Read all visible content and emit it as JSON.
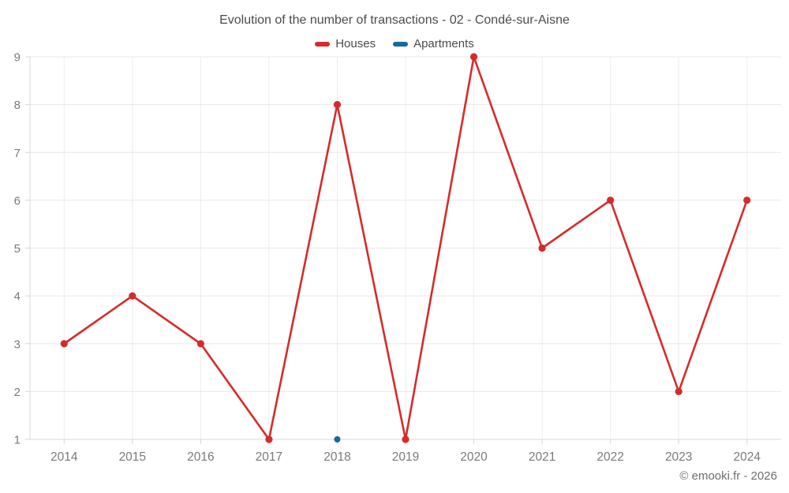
{
  "chart_data": {
    "type": "line",
    "title": "Evolution of the number of transactions - 02 - Condé-sur-Aisne",
    "categories": [
      "2014",
      "2015",
      "2016",
      "2017",
      "2018",
      "2019",
      "2020",
      "2021",
      "2022",
      "2023",
      "2024"
    ],
    "series": [
      {
        "name": "Houses",
        "color": "#d62b2b",
        "values": [
          3,
          4,
          3,
          1,
          8,
          1,
          9,
          5,
          6,
          2,
          6
        ]
      },
      {
        "name": "Apartments",
        "color": "#17699e",
        "values": [
          null,
          null,
          null,
          null,
          1,
          null,
          null,
          null,
          null,
          null,
          null
        ]
      }
    ],
    "ylim": [
      1,
      9
    ],
    "yticks": [
      1,
      2,
      3,
      4,
      5,
      6,
      7,
      8,
      9
    ],
    "grid": true,
    "legend_position": "top",
    "xlabel": "",
    "ylabel": ""
  },
  "colors": {
    "h_gridline": "#e8e8e8",
    "v_gridline": "#ededed",
    "axis": "#d8d8d8",
    "axis_text": "#7a7a7a"
  },
  "footer": {
    "copyright": "© emooki.fr - 2026"
  }
}
